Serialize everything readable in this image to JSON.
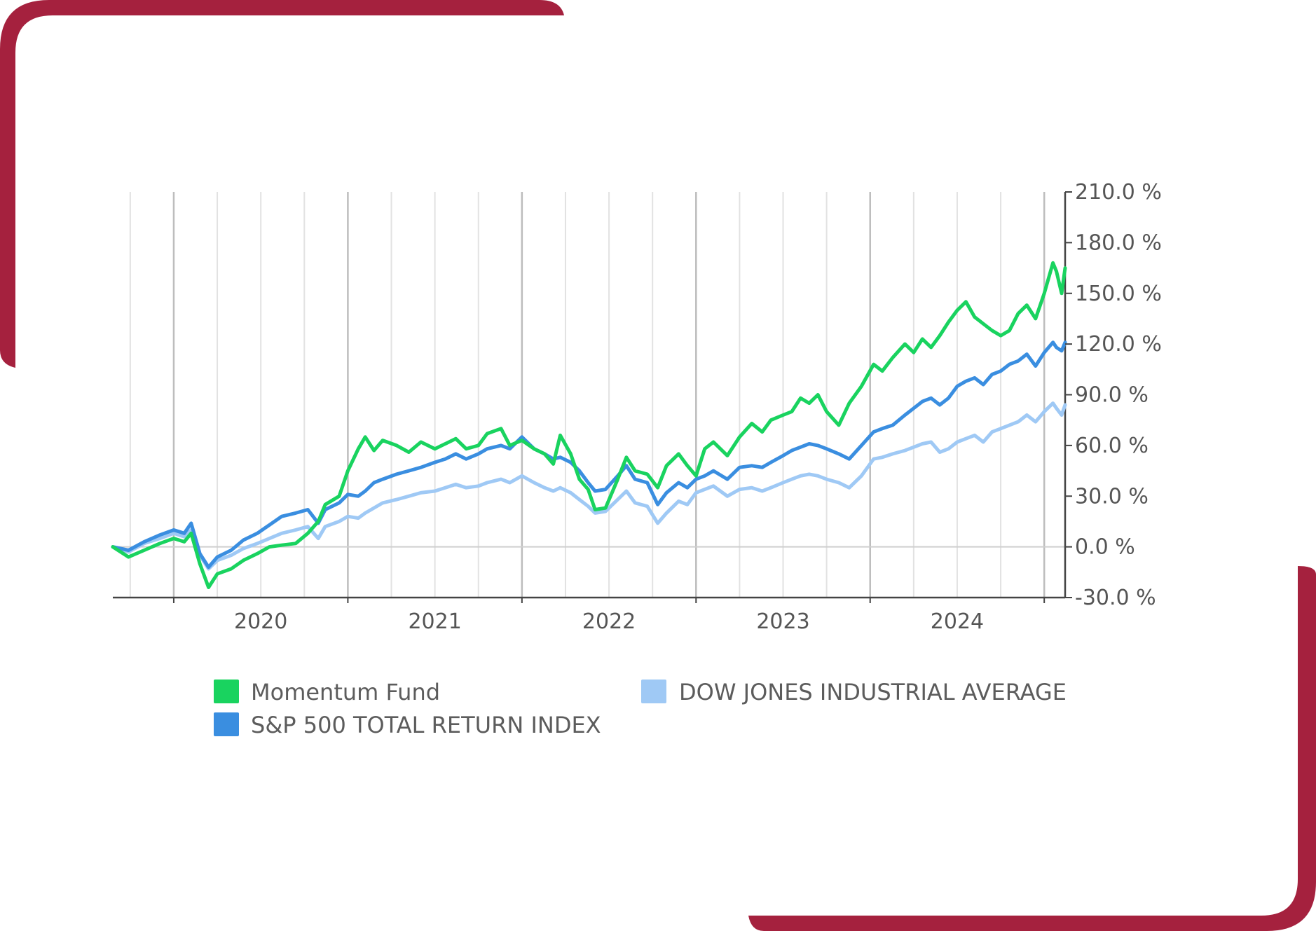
{
  "colors": {
    "frame": "#a5213e",
    "momentum": "#19d35f",
    "sp500": "#3a8ee0",
    "dow": "#9fc9f5",
    "grid": "#c9c9c9",
    "axis": "#444444"
  },
  "chart_data": {
    "type": "line",
    "y_axis_position": "right",
    "ylim": [
      -30,
      210
    ],
    "y_ticks": [
      210,
      180,
      150,
      120,
      90,
      60,
      30,
      0,
      -30
    ],
    "y_tick_labels": [
      "210.0 %",
      "180.0 %",
      "150.0 %",
      "120.0 %",
      "90.0 %",
      "60.0 %",
      "30.0 %",
      "0.0 %",
      "-30.0 %"
    ],
    "xlim": [
      2019.15,
      2024.62
    ],
    "x_ticks": [
      2019.5,
      2020.5,
      2021.5,
      2022.5,
      2023.5,
      2024.5
    ],
    "x_tick_labels": [
      {
        "x": 2020.0,
        "label": "2020"
      },
      {
        "x": 2021.0,
        "label": "2021"
      },
      {
        "x": 2022.0,
        "label": "2022"
      },
      {
        "x": 2023.0,
        "label": "2023"
      },
      {
        "x": 2024.0,
        "label": "2024"
      }
    ],
    "gridlines": [
      2019.25,
      2019.5,
      2019.75,
      2020.0,
      2020.25,
      2020.5,
      2020.75,
      2021.0,
      2021.25,
      2021.5,
      2021.75,
      2022.0,
      2022.25,
      2022.5,
      2022.75,
      2023.0,
      2023.25,
      2023.5,
      2023.75,
      2024.0,
      2024.25,
      2024.5
    ],
    "grid": "vertical",
    "legend_position": "bottom",
    "series": [
      {
        "name": "Momentum Fund",
        "color_key": "momentum",
        "points": [
          [
            2019.15,
            0
          ],
          [
            2019.24,
            -6
          ],
          [
            2019.33,
            -2
          ],
          [
            2019.42,
            2
          ],
          [
            2019.5,
            5
          ],
          [
            2019.56,
            3
          ],
          [
            2019.6,
            8
          ],
          [
            2019.65,
            -10
          ],
          [
            2019.7,
            -24
          ],
          [
            2019.75,
            -16
          ],
          [
            2019.83,
            -13
          ],
          [
            2019.9,
            -8
          ],
          [
            2019.98,
            -4
          ],
          [
            2020.05,
            0
          ],
          [
            2020.12,
            1
          ],
          [
            2020.2,
            2
          ],
          [
            2020.27,
            8
          ],
          [
            2020.33,
            15
          ],
          [
            2020.37,
            25
          ],
          [
            2020.45,
            30
          ],
          [
            2020.5,
            45
          ],
          [
            2020.56,
            58
          ],
          [
            2020.6,
            65
          ],
          [
            2020.65,
            57
          ],
          [
            2020.7,
            63
          ],
          [
            2020.78,
            60
          ],
          [
            2020.85,
            56
          ],
          [
            2020.92,
            62
          ],
          [
            2021.0,
            58
          ],
          [
            2021.06,
            61
          ],
          [
            2021.12,
            64
          ],
          [
            2021.18,
            58
          ],
          [
            2021.25,
            60
          ],
          [
            2021.3,
            67
          ],
          [
            2021.38,
            70
          ],
          [
            2021.43,
            60
          ],
          [
            2021.5,
            63
          ],
          [
            2021.57,
            58
          ],
          [
            2021.63,
            55
          ],
          [
            2021.68,
            49
          ],
          [
            2021.72,
            66
          ],
          [
            2021.78,
            55
          ],
          [
            2021.83,
            40
          ],
          [
            2021.88,
            34
          ],
          [
            2021.92,
            22
          ],
          [
            2021.98,
            23
          ],
          [
            2022.05,
            40
          ],
          [
            2022.1,
            53
          ],
          [
            2022.15,
            45
          ],
          [
            2022.22,
            43
          ],
          [
            2022.28,
            35
          ],
          [
            2022.33,
            48
          ],
          [
            2022.4,
            55
          ],
          [
            2022.45,
            48
          ],
          [
            2022.5,
            42
          ],
          [
            2022.55,
            58
          ],
          [
            2022.6,
            62
          ],
          [
            2022.68,
            54
          ],
          [
            2022.75,
            65
          ],
          [
            2022.82,
            73
          ],
          [
            2022.88,
            68
          ],
          [
            2022.93,
            75
          ],
          [
            2023.0,
            78
          ],
          [
            2023.05,
            80
          ],
          [
            2023.1,
            88
          ],
          [
            2023.15,
            85
          ],
          [
            2023.2,
            90
          ],
          [
            2023.25,
            80
          ],
          [
            2023.32,
            72
          ],
          [
            2023.38,
            85
          ],
          [
            2023.45,
            95
          ],
          [
            2023.52,
            108
          ],
          [
            2023.57,
            104
          ],
          [
            2023.63,
            112
          ],
          [
            2023.7,
            120
          ],
          [
            2023.75,
            115
          ],
          [
            2023.8,
            123
          ],
          [
            2023.85,
            118
          ],
          [
            2023.9,
            125
          ],
          [
            2023.95,
            133
          ],
          [
            2024.0,
            140
          ],
          [
            2024.05,
            145
          ],
          [
            2024.1,
            136
          ],
          [
            2024.15,
            132
          ],
          [
            2024.2,
            128
          ],
          [
            2024.25,
            125
          ],
          [
            2024.3,
            128
          ],
          [
            2024.35,
            138
          ],
          [
            2024.4,
            143
          ],
          [
            2024.45,
            135
          ],
          [
            2024.5,
            150
          ],
          [
            2024.55,
            168
          ],
          [
            2024.57,
            163
          ],
          [
            2024.6,
            150
          ],
          [
            2024.62,
            165
          ]
        ]
      },
      {
        "name": "S&P 500 TOTAL RETURN INDEX",
        "color_key": "sp500",
        "points": [
          [
            2019.15,
            0
          ],
          [
            2019.24,
            -2
          ],
          [
            2019.33,
            3
          ],
          [
            2019.42,
            7
          ],
          [
            2019.5,
            10
          ],
          [
            2019.56,
            8
          ],
          [
            2019.6,
            14
          ],
          [
            2019.65,
            -4
          ],
          [
            2019.7,
            -12
          ],
          [
            2019.75,
            -6
          ],
          [
            2019.83,
            -2
          ],
          [
            2019.9,
            4
          ],
          [
            2019.98,
            8
          ],
          [
            2020.05,
            13
          ],
          [
            2020.12,
            18
          ],
          [
            2020.2,
            20
          ],
          [
            2020.27,
            22
          ],
          [
            2020.33,
            14
          ],
          [
            2020.37,
            22
          ],
          [
            2020.45,
            26
          ],
          [
            2020.5,
            31
          ],
          [
            2020.56,
            30
          ],
          [
            2020.6,
            33
          ],
          [
            2020.65,
            38
          ],
          [
            2020.7,
            40
          ],
          [
            2020.78,
            43
          ],
          [
            2020.85,
            45
          ],
          [
            2020.92,
            47
          ],
          [
            2021.0,
            50
          ],
          [
            2021.06,
            52
          ],
          [
            2021.12,
            55
          ],
          [
            2021.18,
            52
          ],
          [
            2021.25,
            55
          ],
          [
            2021.3,
            58
          ],
          [
            2021.38,
            60
          ],
          [
            2021.43,
            58
          ],
          [
            2021.5,
            65
          ],
          [
            2021.57,
            58
          ],
          [
            2021.63,
            55
          ],
          [
            2021.68,
            52
          ],
          [
            2021.72,
            53
          ],
          [
            2021.78,
            50
          ],
          [
            2021.83,
            45
          ],
          [
            2021.88,
            38
          ],
          [
            2021.92,
            33
          ],
          [
            2021.98,
            34
          ],
          [
            2022.05,
            42
          ],
          [
            2022.1,
            48
          ],
          [
            2022.15,
            40
          ],
          [
            2022.22,
            38
          ],
          [
            2022.28,
            25
          ],
          [
            2022.33,
            32
          ],
          [
            2022.4,
            38
          ],
          [
            2022.45,
            35
          ],
          [
            2022.5,
            40
          ],
          [
            2022.55,
            42
          ],
          [
            2022.6,
            45
          ],
          [
            2022.68,
            40
          ],
          [
            2022.75,
            47
          ],
          [
            2022.82,
            48
          ],
          [
            2022.88,
            47
          ],
          [
            2022.93,
            50
          ],
          [
            2023.0,
            54
          ],
          [
            2023.05,
            57
          ],
          [
            2023.1,
            59
          ],
          [
            2023.15,
            61
          ],
          [
            2023.2,
            60
          ],
          [
            2023.25,
            58
          ],
          [
            2023.32,
            55
          ],
          [
            2023.38,
            52
          ],
          [
            2023.45,
            60
          ],
          [
            2023.52,
            68
          ],
          [
            2023.57,
            70
          ],
          [
            2023.63,
            72
          ],
          [
            2023.7,
            78
          ],
          [
            2023.75,
            82
          ],
          [
            2023.8,
            86
          ],
          [
            2023.85,
            88
          ],
          [
            2023.9,
            84
          ],
          [
            2023.95,
            88
          ],
          [
            2024.0,
            95
          ],
          [
            2024.05,
            98
          ],
          [
            2024.1,
            100
          ],
          [
            2024.15,
            96
          ],
          [
            2024.2,
            102
          ],
          [
            2024.25,
            104
          ],
          [
            2024.3,
            108
          ],
          [
            2024.35,
            110
          ],
          [
            2024.4,
            114
          ],
          [
            2024.45,
            107
          ],
          [
            2024.5,
            115
          ],
          [
            2024.55,
            121
          ],
          [
            2024.57,
            118
          ],
          [
            2024.6,
            116
          ],
          [
            2024.62,
            121
          ]
        ]
      },
      {
        "name": "DOW JONES INDUSTRIAL AVERAGE",
        "color_key": "dow",
        "points": [
          [
            2019.15,
            0
          ],
          [
            2019.24,
            -3
          ],
          [
            2019.33,
            2
          ],
          [
            2019.42,
            5
          ],
          [
            2019.5,
            8
          ],
          [
            2019.56,
            6
          ],
          [
            2019.6,
            10
          ],
          [
            2019.65,
            -5
          ],
          [
            2019.7,
            -13
          ],
          [
            2019.75,
            -8
          ],
          [
            2019.83,
            -5
          ],
          [
            2019.9,
            -1
          ],
          [
            2019.98,
            2
          ],
          [
            2020.05,
            5
          ],
          [
            2020.12,
            8
          ],
          [
            2020.2,
            10
          ],
          [
            2020.27,
            12
          ],
          [
            2020.33,
            5
          ],
          [
            2020.37,
            12
          ],
          [
            2020.45,
            15
          ],
          [
            2020.5,
            18
          ],
          [
            2020.56,
            17
          ],
          [
            2020.6,
            20
          ],
          [
            2020.65,
            23
          ],
          [
            2020.7,
            26
          ],
          [
            2020.78,
            28
          ],
          [
            2020.85,
            30
          ],
          [
            2020.92,
            32
          ],
          [
            2021.0,
            33
          ],
          [
            2021.06,
            35
          ],
          [
            2021.12,
            37
          ],
          [
            2021.18,
            35
          ],
          [
            2021.25,
            36
          ],
          [
            2021.3,
            38
          ],
          [
            2021.38,
            40
          ],
          [
            2021.43,
            38
          ],
          [
            2021.5,
            42
          ],
          [
            2021.57,
            38
          ],
          [
            2021.63,
            35
          ],
          [
            2021.68,
            33
          ],
          [
            2021.72,
            35
          ],
          [
            2021.78,
            32
          ],
          [
            2021.83,
            28
          ],
          [
            2021.88,
            24
          ],
          [
            2021.92,
            20
          ],
          [
            2021.98,
            21
          ],
          [
            2022.05,
            28
          ],
          [
            2022.1,
            33
          ],
          [
            2022.15,
            26
          ],
          [
            2022.22,
            24
          ],
          [
            2022.28,
            14
          ],
          [
            2022.33,
            20
          ],
          [
            2022.4,
            27
          ],
          [
            2022.45,
            25
          ],
          [
            2022.5,
            32
          ],
          [
            2022.55,
            34
          ],
          [
            2022.6,
            36
          ],
          [
            2022.68,
            30
          ],
          [
            2022.75,
            34
          ],
          [
            2022.82,
            35
          ],
          [
            2022.88,
            33
          ],
          [
            2022.93,
            35
          ],
          [
            2023.0,
            38
          ],
          [
            2023.05,
            40
          ],
          [
            2023.1,
            42
          ],
          [
            2023.15,
            43
          ],
          [
            2023.2,
            42
          ],
          [
            2023.25,
            40
          ],
          [
            2023.32,
            38
          ],
          [
            2023.38,
            35
          ],
          [
            2023.45,
            42
          ],
          [
            2023.52,
            52
          ],
          [
            2023.57,
            53
          ],
          [
            2023.63,
            55
          ],
          [
            2023.7,
            57
          ],
          [
            2023.75,
            59
          ],
          [
            2023.8,
            61
          ],
          [
            2023.85,
            62
          ],
          [
            2023.9,
            56
          ],
          [
            2023.95,
            58
          ],
          [
            2024.0,
            62
          ],
          [
            2024.05,
            64
          ],
          [
            2024.1,
            66
          ],
          [
            2024.15,
            62
          ],
          [
            2024.2,
            68
          ],
          [
            2024.25,
            70
          ],
          [
            2024.3,
            72
          ],
          [
            2024.35,
            74
          ],
          [
            2024.4,
            78
          ],
          [
            2024.45,
            74
          ],
          [
            2024.5,
            80
          ],
          [
            2024.55,
            85
          ],
          [
            2024.57,
            82
          ],
          [
            2024.6,
            78
          ],
          [
            2024.62,
            84
          ]
        ]
      }
    ]
  },
  "legend": [
    {
      "label": "Momentum Fund",
      "color_key": "momentum"
    },
    {
      "label": "S&P 500 TOTAL RETURN INDEX",
      "color_key": "sp500"
    },
    {
      "label": "DOW JONES INDUSTRIAL AVERAGE",
      "color_key": "dow"
    }
  ]
}
